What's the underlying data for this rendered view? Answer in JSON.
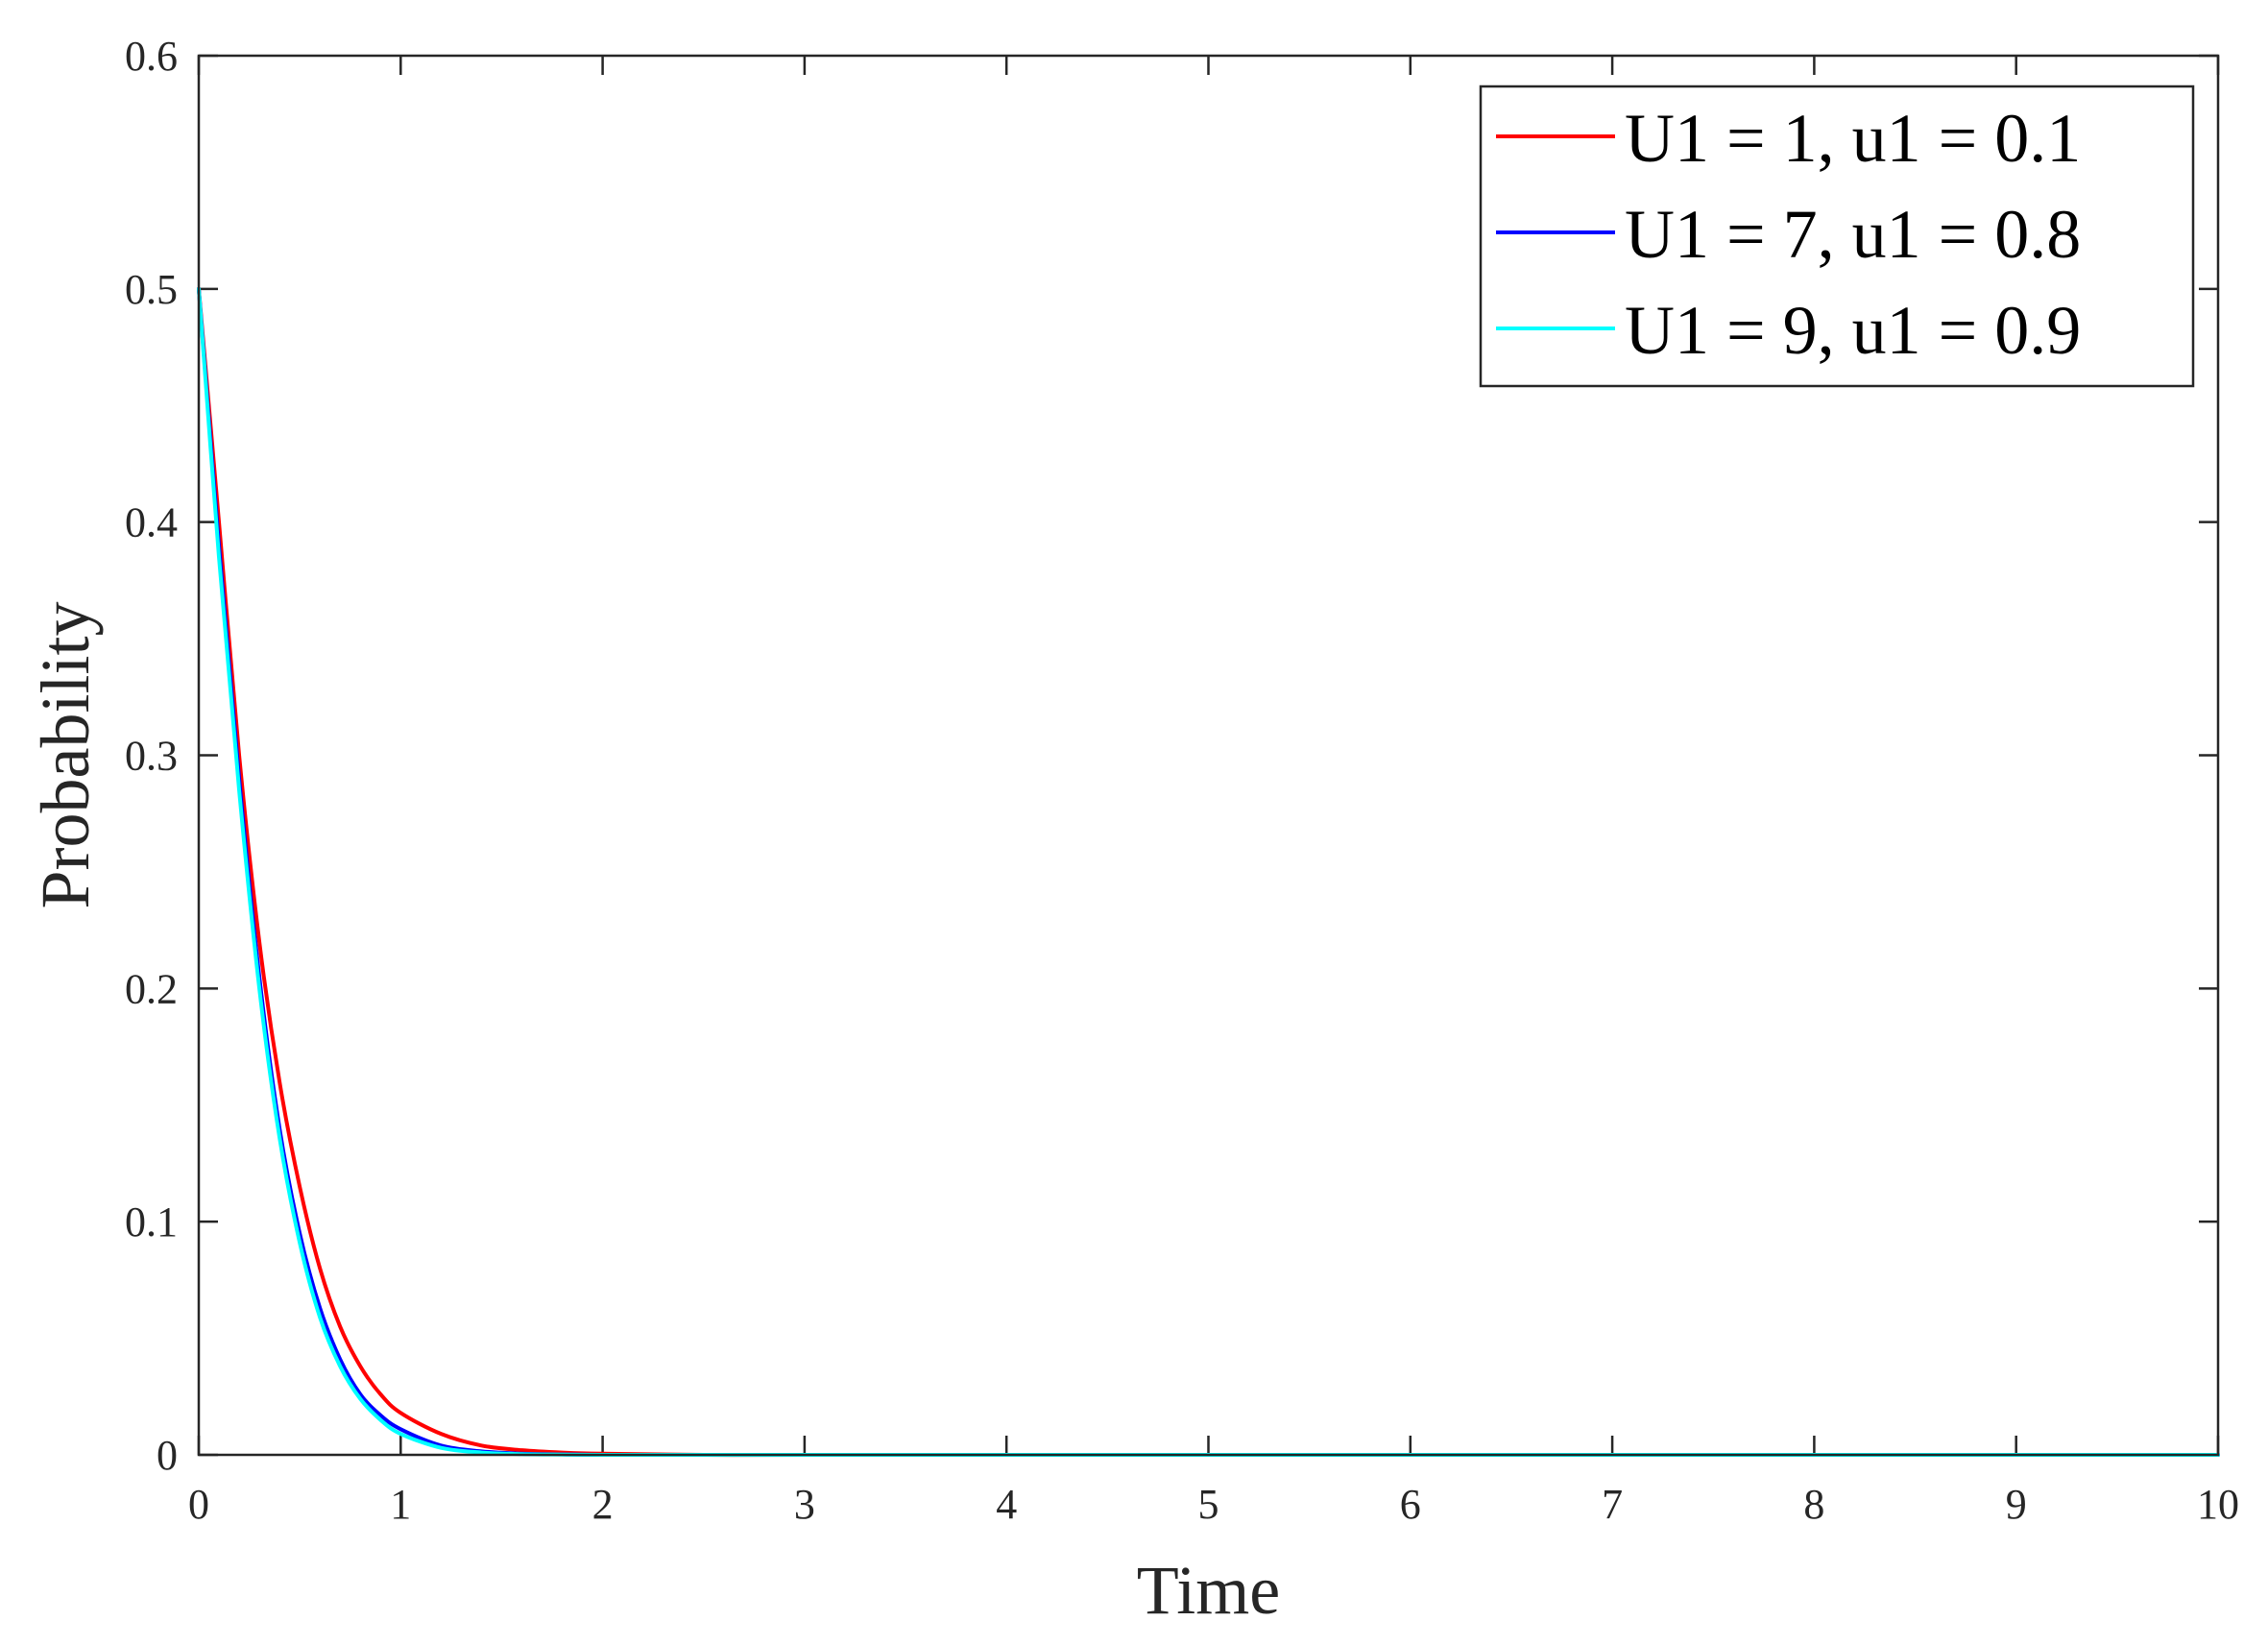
{
  "chart_data": {
    "type": "line",
    "xlabel": "Time",
    "ylabel": "Probability",
    "xlim": [
      0,
      10
    ],
    "ylim": [
      0,
      0.6
    ],
    "xticks": [
      0,
      1,
      2,
      3,
      4,
      5,
      6,
      7,
      8,
      9,
      10
    ],
    "xtick_labels": [
      "0",
      "1",
      "2",
      "3",
      "4",
      "5",
      "6",
      "7",
      "8",
      "9",
      "10"
    ],
    "yticks": [
      0,
      0.1,
      0.2,
      0.3,
      0.4,
      0.5,
      0.6
    ],
    "ytick_labels": [
      "0",
      "0.1",
      "0.2",
      "0.3",
      "0.4",
      "0.5",
      "0.6"
    ],
    "grid": false,
    "box": true,
    "legend_position": "top-right",
    "series": [
      {
        "name": "U1 = 1, u1 = 0.1",
        "color": "#ff0000",
        "x": [
          0,
          0.1,
          0.2,
          0.3,
          0.4,
          0.5,
          0.6,
          0.7,
          0.8,
          0.9,
          1.0,
          1.2,
          1.4,
          1.6,
          1.8,
          2.0,
          2.5,
          3,
          4,
          5,
          6,
          7,
          8,
          9,
          10
        ],
        "y": [
          0.5,
          0.4,
          0.3,
          0.22,
          0.16,
          0.115,
          0.08,
          0.055,
          0.038,
          0.026,
          0.018,
          0.009,
          0.004,
          0.002,
          0.001,
          0.0005,
          0,
          0,
          0,
          0,
          0,
          0,
          0,
          0,
          0
        ]
      },
      {
        "name": "U1 = 7, u1 = 0.8",
        "color": "#0000ff",
        "x": [
          0,
          0.1,
          0.2,
          0.3,
          0.4,
          0.5,
          0.6,
          0.7,
          0.8,
          0.9,
          1.0,
          1.2,
          1.4,
          1.6,
          1.8,
          2.0,
          2.5,
          3,
          4,
          5,
          6,
          7,
          8,
          9,
          10
        ],
        "y": [
          0.5,
          0.39,
          0.29,
          0.205,
          0.14,
          0.095,
          0.063,
          0.041,
          0.026,
          0.017,
          0.011,
          0.004,
          0.0015,
          0.0005,
          0.0002,
          0,
          0,
          0,
          0,
          0,
          0,
          0,
          0,
          0,
          0
        ]
      },
      {
        "name": "U1 = 9, u1 = 0.9",
        "color": "#00ffff",
        "x": [
          0,
          0.1,
          0.2,
          0.3,
          0.4,
          0.5,
          0.6,
          0.7,
          0.8,
          0.9,
          1.0,
          1.2,
          1.4,
          1.6,
          1.8,
          2.0,
          2.5,
          3,
          4,
          5,
          6,
          7,
          8,
          9,
          10
        ],
        "y": [
          0.5,
          0.385,
          0.285,
          0.2,
          0.136,
          0.091,
          0.059,
          0.038,
          0.024,
          0.015,
          0.009,
          0.003,
          0.001,
          0.0003,
          0.0001,
          0,
          0,
          0,
          0,
          0,
          0,
          0,
          0,
          0,
          0
        ]
      }
    ]
  }
}
